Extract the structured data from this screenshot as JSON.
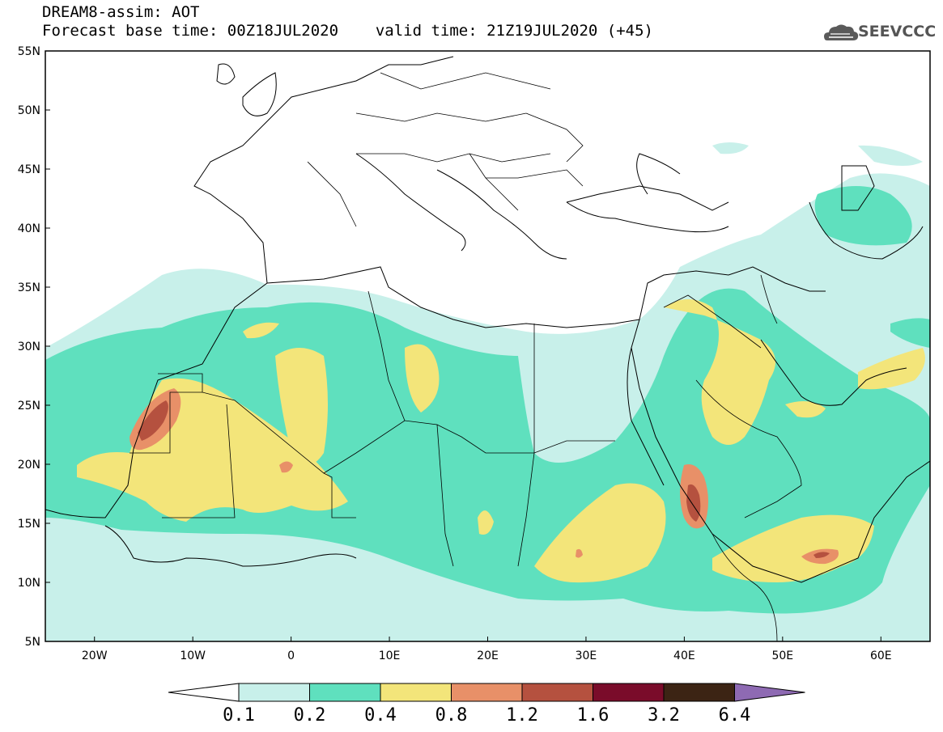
{
  "header": {
    "line1": "DREAM8-assim: AOT",
    "line2_left": "Forecast base time: 00Z18JUL2020",
    "line2_right": "valid time: 21Z19JUL2020 (+45)"
  },
  "logo": {
    "text": "SEEVCCC",
    "icon": "cloud-icon"
  },
  "map": {
    "lon_range": [
      -25,
      65
    ],
    "lat_range": [
      5,
      55
    ],
    "y_ticks": [
      "55N",
      "50N",
      "45N",
      "40N",
      "35N",
      "30N",
      "25N",
      "20N",
      "15N",
      "10N",
      "5N"
    ],
    "x_ticks": [
      "20W",
      "10W",
      "0",
      "10E",
      "20E",
      "30E",
      "40E",
      "50E",
      "60E"
    ],
    "colors": {
      "c01": "#c8f0ea",
      "c02": "#5fe0be",
      "c04": "#f3e57a",
      "c08": "#e89068",
      "c12": "#b5513f",
      "c16": "#7a0c2a",
      "c32": "#3c2414",
      "c64": "#8e6ab3"
    }
  },
  "colorbar": {
    "labels": [
      "0.1",
      "0.2",
      "0.4",
      "0.8",
      "1.2",
      "1.6",
      "3.2",
      "6.4"
    ],
    "colors": [
      "#c8f0ea",
      "#5fe0be",
      "#f3e57a",
      "#e89068",
      "#b5513f",
      "#7a0c2a",
      "#3c2414",
      "#8e6ab3"
    ]
  }
}
